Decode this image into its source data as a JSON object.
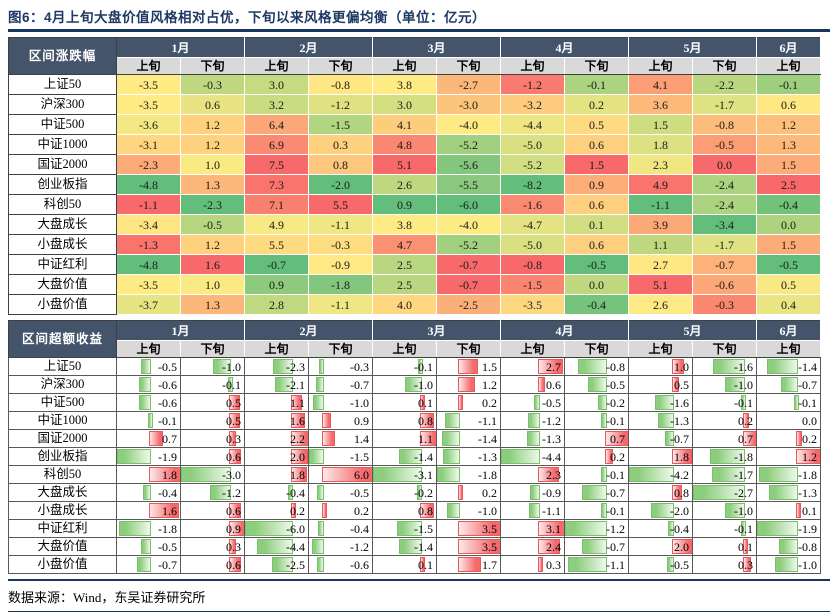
{
  "title": "图6：4月上旬大盘价值风格相对占优，下旬以来风格更偏均衡（单位：亿元）",
  "source_note": "数据来源：Wind，东吴证券研究所",
  "months": [
    {
      "label": "1月",
      "halves": [
        "上旬",
        "下旬"
      ]
    },
    {
      "label": "2月",
      "halves": [
        "上旬",
        "下旬"
      ]
    },
    {
      "label": "3月",
      "halves": [
        "上旬",
        "下旬"
      ]
    },
    {
      "label": "4月",
      "halves": [
        "上旬",
        "下旬"
      ]
    },
    {
      "label": "5月",
      "halves": [
        "上旬",
        "下旬"
      ]
    },
    {
      "label": "6月",
      "halves": [
        "上旬"
      ]
    }
  ],
  "colors": {
    "header_bg": "#44546A",
    "subheader_bg": "#D9D9D9",
    "scale_min_green": "#63BE7B",
    "scale_mid_yellow": "#FFEB84",
    "scale_max_red": "#F8696B",
    "bar_positive": "#F4696C",
    "bar_negative": "#8CCE7D",
    "rule_navy": "#17375E",
    "title_navy": "#1F3864"
  },
  "chart_data": [
    {
      "type": "heatmap",
      "title": "区间涨跌幅",
      "columns": [
        "1月上旬",
        "1月下旬",
        "2月上旬",
        "2月下旬",
        "3月上旬",
        "3月下旬",
        "4月上旬",
        "4月下旬",
        "5月上旬",
        "5月下旬",
        "6月上旬"
      ],
      "rows": [
        "上证50",
        "沪深300",
        "中证500",
        "中证1000",
        "国证2000",
        "创业板指",
        "科创50",
        "大盘成长",
        "小盘成长",
        "中证红利",
        "大盘价值",
        "小盘价值"
      ],
      "values": [
        [
          -3.5,
          -0.3,
          3.0,
          -0.8,
          3.8,
          -2.7,
          -1.2,
          -0.1,
          4.1,
          -2.2,
          -0.1
        ],
        [
          -3.5,
          0.6,
          3.2,
          -1.2,
          3.0,
          -3.0,
          -3.2,
          0.2,
          3.6,
          -1.7,
          0.6
        ],
        [
          -3.6,
          1.2,
          6.4,
          -1.5,
          4.1,
          -4.0,
          -4.4,
          0.5,
          1.5,
          -0.8,
          1.2
        ],
        [
          -3.1,
          1.2,
          6.9,
          0.3,
          4.8,
          -5.2,
          -5.0,
          0.6,
          1.8,
          -0.5,
          1.3
        ],
        [
          -2.3,
          1.0,
          7.5,
          0.8,
          5.1,
          -5.6,
          -5.2,
          1.5,
          2.3,
          0.0,
          1.5
        ],
        [
          -4.8,
          1.3,
          7.3,
          -2.0,
          2.6,
          -5.5,
          -8.2,
          0.9,
          4.9,
          -2.4,
          2.5
        ],
        [
          -1.1,
          -2.3,
          7.1,
          5.5,
          0.9,
          -6.0,
          -1.6,
          0.6,
          -1.1,
          -2.4,
          -0.4
        ],
        [
          -3.4,
          -0.5,
          4.9,
          -1.1,
          3.8,
          -4.0,
          -4.7,
          0.1,
          3.9,
          -3.4,
          0.0
        ],
        [
          -1.3,
          1.2,
          5.5,
          -0.3,
          4.7,
          -5.2,
          -5.0,
          0.6,
          1.1,
          -1.7,
          1.5
        ],
        [
          -4.8,
          1.6,
          -0.7,
          -0.9,
          2.5,
          -0.7,
          -0.8,
          -0.5,
          2.7,
          -0.7,
          -0.5
        ],
        [
          -3.5,
          1.0,
          0.9,
          -1.8,
          2.5,
          -0.7,
          -1.5,
          0.0,
          5.1,
          -0.6,
          0.5
        ],
        [
          -3.7,
          1.3,
          2.8,
          -1.1,
          4.0,
          -2.5,
          -3.5,
          -0.4,
          2.6,
          -0.3,
          0.4
        ]
      ],
      "legend_position": "none",
      "color_scale_note": "3-color scale per column: min=green, median=yellow, max=red"
    },
    {
      "type": "bar",
      "title": "区间超额收益",
      "columns": [
        "1月上旬",
        "1月下旬",
        "2月上旬",
        "2月下旬",
        "3月上旬",
        "3月下旬",
        "4月上旬",
        "4月下旬",
        "5月上旬",
        "5月下旬",
        "6月上旬"
      ],
      "rows": [
        "上证50",
        "沪深300",
        "中证500",
        "中证1000",
        "国证2000",
        "创业板指",
        "科创50",
        "大盘成长",
        "小盘成长",
        "中证红利",
        "大盘价值",
        "小盘价值"
      ],
      "values": [
        [
          -0.5,
          -1.0,
          -2.3,
          -0.3,
          -0.1,
          1.5,
          2.7,
          -0.8,
          1.0,
          -1.6,
          -1.4
        ],
        [
          -0.6,
          -0.1,
          -2.1,
          -0.7,
          -1.0,
          1.2,
          0.6,
          -0.5,
          0.5,
          -1.0,
          -0.7
        ],
        [
          -0.6,
          0.5,
          1.1,
          -1.0,
          0.1,
          0.2,
          -0.5,
          -0.2,
          -1.6,
          -0.1,
          -0.1
        ],
        [
          -0.1,
          0.5,
          1.6,
          0.9,
          0.8,
          -1.1,
          -1.2,
          -0.1,
          -1.3,
          0.2,
          0.0
        ],
        [
          0.7,
          0.3,
          2.2,
          1.4,
          1.1,
          -1.4,
          -1.3,
          0.7,
          -0.7,
          0.7,
          0.2
        ],
        [
          -1.9,
          0.6,
          2.0,
          -1.5,
          -1.4,
          -1.3,
          -4.4,
          0.2,
          1.8,
          -1.8,
          1.2
        ],
        [
          1.8,
          -3.0,
          1.8,
          6.0,
          -3.1,
          -1.8,
          2.3,
          -0.1,
          -4.2,
          -1.7,
          -1.8
        ],
        [
          -0.4,
          -1.2,
          -0.4,
          -0.5,
          -0.2,
          0.2,
          -0.9,
          -0.7,
          0.8,
          -2.7,
          -1.3
        ],
        [
          1.6,
          0.6,
          0.2,
          0.2,
          0.8,
          -1.0,
          -1.1,
          -0.1,
          -2.0,
          -1.0,
          0.1
        ],
        [
          -1.8,
          0.9,
          -6.0,
          -0.4,
          -1.5,
          3.5,
          3.1,
          -1.2,
          -0.4,
          -0.1,
          -1.9
        ],
        [
          -0.5,
          0.3,
          -4.4,
          -1.2,
          -1.4,
          3.5,
          2.4,
          -0.7,
          2.0,
          0.1,
          -0.8
        ],
        [
          -0.7,
          0.6,
          -2.5,
          -0.6,
          0.1,
          1.7,
          0.3,
          -1.1,
          -0.5,
          0.3,
          -1.0
        ]
      ],
      "legend_position": "none",
      "bar_note": "excel-style data bars per column: positive=red right of axis, negative=green left of axis"
    }
  ]
}
